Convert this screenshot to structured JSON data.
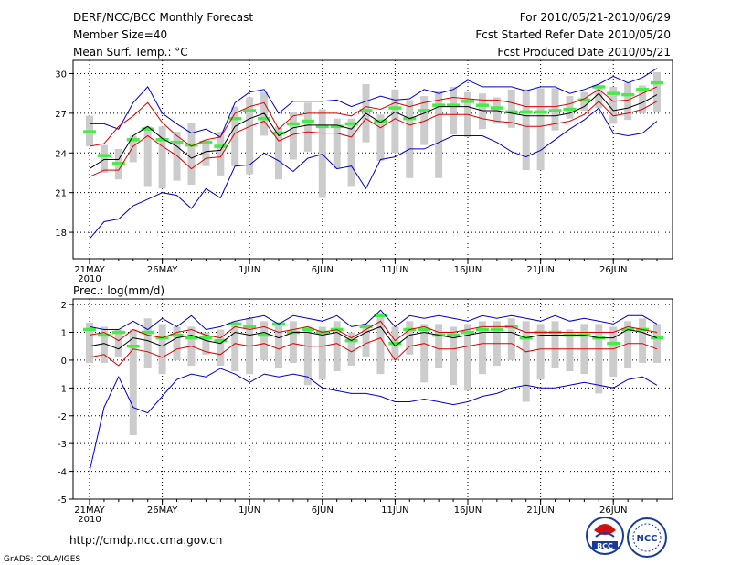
{
  "header": {
    "title": "DERF/NCC/BCC Monthly Forecast",
    "member_size": "Member Size=40",
    "variable": "Mean Surf. Temp.: °C",
    "period": "For 2010/05/21-2010/06/29",
    "refer_date": "Fcst Started Refer Date 2010/05/20",
    "produced_date": "Fcst Produced Date 2010/05/21"
  },
  "footer": {
    "url": "http://cmdp.ncc.cma.gov.cn",
    "credit": "GrADS: COLA/IGES",
    "logo_left_text": "BCC",
    "logo_right_text": "NCC"
  },
  "colors": {
    "box": "#cccccc",
    "median": "#44ee44",
    "mean": "#000000",
    "spread": "#dd0000",
    "extreme": "#0000cc",
    "grid": "#000000"
  },
  "chart_data": [
    {
      "type": "line",
      "panel": "temperature",
      "title": "Mean Surf. Temp.: °C",
      "ylim": [
        16,
        31
      ],
      "yticks": [
        18,
        21,
        24,
        27,
        30
      ],
      "x_tick_labels": [
        {
          "day": 0,
          "label": "21MAY"
        },
        {
          "day": 5,
          "label": "26MAY"
        },
        {
          "day": 11,
          "label": "1JUN"
        },
        {
          "day": 16,
          "label": "6JUN"
        },
        {
          "day": 21,
          "label": "11JUN"
        },
        {
          "day": 26,
          "label": "16JUN"
        },
        {
          "day": 31,
          "label": "21JUN"
        },
        {
          "day": 36,
          "label": "26JUN"
        }
      ],
      "x_year_label": "2010",
      "days": 40,
      "series": [
        {
          "name": "max",
          "values": [
            26.2,
            26.2,
            25.8,
            27.8,
            29.0,
            27.0,
            26.2,
            25.5,
            25.8,
            25.2,
            27.8,
            28.6,
            28.8,
            27.0,
            27.9,
            27.9,
            27.9,
            28.0,
            27.5,
            27.9,
            28.3,
            28.0,
            28.1,
            28.8,
            28.5,
            28.8,
            29.5,
            29.0,
            29.0,
            29.0,
            28.7,
            29.0,
            29.0,
            28.5,
            28.8,
            29.2,
            29.8,
            29.3,
            29.7,
            30.4
          ]
        },
        {
          "name": "upper",
          "values": [
            24.5,
            24.7,
            26.0,
            26.8,
            27.8,
            26.3,
            25.3,
            24.5,
            25.0,
            25.2,
            27.0,
            27.5,
            27.8,
            25.8,
            26.8,
            27.0,
            27.0,
            27.0,
            26.8,
            27.5,
            27.3,
            27.8,
            27.5,
            27.8,
            28.0,
            28.2,
            28.1,
            28.0,
            28.0,
            27.8,
            27.5,
            27.5,
            27.5,
            27.7,
            28.1,
            28.8,
            27.9,
            28.0,
            28.5,
            29.0
          ]
        },
        {
          "name": "mean",
          "values": [
            22.8,
            23.5,
            23.5,
            25.3,
            26.0,
            25.1,
            24.5,
            23.6,
            24.1,
            24.2,
            26.0,
            26.6,
            27.0,
            25.3,
            25.9,
            26.1,
            26.1,
            26.1,
            25.8,
            27.0,
            26.3,
            27.1,
            26.6,
            27.0,
            27.5,
            27.5,
            27.5,
            27.2,
            27.2,
            27.0,
            26.8,
            26.8,
            26.8,
            27.0,
            27.5,
            28.5,
            27.2,
            27.4,
            27.8,
            28.4
          ]
        },
        {
          "name": "lower",
          "values": [
            22.2,
            22.7,
            22.7,
            24.5,
            25.3,
            24.5,
            23.8,
            22.8,
            23.6,
            23.7,
            25.5,
            26.0,
            26.4,
            24.9,
            25.4,
            25.6,
            25.5,
            25.5,
            25.2,
            26.6,
            25.9,
            26.6,
            26.1,
            26.4,
            26.9,
            26.9,
            26.9,
            26.6,
            26.4,
            26.3,
            26.0,
            26.0,
            26.2,
            26.4,
            26.9,
            27.9,
            26.8,
            27.0,
            27.3,
            27.9
          ]
        },
        {
          "name": "min",
          "values": [
            17.5,
            18.8,
            19.0,
            20.0,
            20.5,
            21.0,
            20.8,
            19.8,
            21.3,
            20.6,
            23.0,
            23.1,
            24.0,
            23.4,
            22.6,
            23.6,
            23.9,
            22.8,
            23.0,
            21.3,
            23.5,
            23.7,
            24.3,
            24.3,
            24.8,
            25.3,
            25.3,
            25.3,
            24.8,
            24.1,
            23.7,
            24.2,
            25.0,
            25.8,
            26.5,
            27.4,
            25.5,
            25.3,
            25.5,
            26.4
          ]
        }
      ],
      "boxes": {
        "top": [
          26.8,
          24.6,
          24.3,
          25.3,
          26.0,
          26.0,
          25.6,
          26.3,
          25.0,
          25.6,
          27.5,
          28.2,
          28.6,
          26.0,
          27.1,
          27.8,
          27.3,
          26.6,
          26.6,
          29.2,
          26.9,
          28.8,
          28.0,
          28.3,
          28.7,
          29.0,
          28.6,
          28.5,
          28.2,
          28.8,
          28.8,
          28.9,
          28.9,
          28.3,
          28.6,
          29.1,
          29.0,
          29.3,
          29.1,
          30.1
        ],
        "bottom": [
          24.5,
          22.5,
          22.0,
          23.3,
          21.5,
          21.3,
          21.9,
          21.6,
          23.0,
          22.3,
          23.0,
          22.4,
          25.3,
          22.0,
          23.5,
          24.1,
          20.6,
          22.8,
          21.5,
          24.8,
          23.4,
          24.0,
          22.1,
          24.6,
          22.1,
          25.4,
          25.2,
          25.8,
          26.2,
          25.9,
          22.7,
          22.7,
          25.7,
          26.6,
          27.2,
          27.4,
          26.2,
          26.5,
          27.0,
          27.1
        ],
        "median": [
          25.6,
          23.8,
          23.2,
          25.0,
          25.8,
          25.0,
          24.8,
          24.6,
          24.8,
          24.5,
          26.6,
          27.2,
          26.6,
          25.5,
          26.2,
          26.4,
          26.0,
          26.0,
          26.2,
          27.2,
          26.4,
          27.4,
          26.6,
          27.2,
          27.6,
          27.6,
          27.9,
          27.6,
          27.4,
          27.1,
          27.1,
          27.1,
          27.2,
          27.3,
          28.0,
          29.0,
          28.5,
          28.4,
          28.8,
          29.3
        ]
      }
    },
    {
      "type": "line",
      "panel": "precipitation",
      "title": "Prec.: log(mm/d)",
      "ylim": [
        -5,
        2.2
      ],
      "yticks": [
        -5,
        -4,
        -3,
        -2,
        -1,
        0,
        1,
        2
      ],
      "x_tick_labels": [
        {
          "day": 0,
          "label": "21MAY"
        },
        {
          "day": 5,
          "label": "26MAY"
        },
        {
          "day": 11,
          "label": "1JUN"
        },
        {
          "day": 16,
          "label": "6JUN"
        },
        {
          "day": 21,
          "label": "11JUN"
        },
        {
          "day": 26,
          "label": "16JUN"
        },
        {
          "day": 31,
          "label": "21JUN"
        },
        {
          "day": 36,
          "label": "26JUN"
        }
      ],
      "x_year_label": "2010",
      "days": 40,
      "series": [
        {
          "name": "max",
          "values": [
            1.2,
            1.1,
            1.1,
            1.4,
            1.1,
            1.5,
            1.2,
            1.6,
            1.1,
            1.2,
            1.4,
            1.5,
            1.6,
            1.3,
            1.6,
            1.5,
            1.4,
            1.6,
            1.2,
            1.3,
            1.8,
            1.2,
            1.6,
            1.5,
            1.6,
            1.5,
            1.4,
            1.6,
            1.5,
            1.6,
            1.5,
            1.4,
            1.6,
            1.4,
            1.5,
            1.4,
            1.3,
            1.6,
            1.6,
            1.3
          ]
        },
        {
          "name": "upper",
          "values": [
            0.9,
            1.0,
            0.7,
            1.1,
            0.9,
            0.8,
            1.0,
            1.1,
            0.9,
            0.8,
            1.2,
            1.1,
            1.2,
            1.0,
            1.1,
            1.2,
            1.0,
            1.1,
            0.8,
            1.1,
            1.4,
            0.7,
            1.1,
            1.2,
            1.0,
            1.0,
            1.1,
            1.2,
            1.2,
            1.2,
            1.0,
            1.0,
            1.0,
            1.0,
            1.0,
            1.0,
            1.0,
            1.2,
            1.1,
            1.0
          ]
        },
        {
          "name": "mean",
          "values": [
            0.5,
            0.6,
            0.4,
            0.8,
            0.7,
            0.5,
            0.8,
            0.9,
            0.7,
            0.6,
            1.0,
            0.9,
            1.0,
            0.8,
            1.0,
            1.0,
            0.9,
            1.0,
            0.7,
            1.0,
            1.2,
            0.5,
            0.9,
            1.0,
            0.9,
            0.8,
            0.9,
            1.0,
            1.0,
            1.0,
            0.8,
            0.9,
            0.9,
            0.9,
            0.9,
            0.8,
            0.8,
            1.1,
            1.0,
            0.8
          ]
        },
        {
          "name": "lower",
          "values": [
            0.1,
            0.2,
            -0.2,
            0.4,
            0.3,
            0.1,
            0.4,
            0.5,
            0.3,
            0.2,
            0.6,
            0.5,
            0.6,
            0.4,
            0.6,
            0.5,
            0.5,
            0.6,
            0.3,
            0.6,
            0.8,
            0.0,
            0.5,
            0.6,
            0.4,
            0.4,
            0.5,
            0.6,
            0.6,
            0.6,
            0.3,
            0.4,
            0.4,
            0.4,
            0.4,
            0.4,
            0.4,
            0.6,
            0.6,
            0.4
          ]
        },
        {
          "name": "min",
          "values": [
            -4.0,
            -1.7,
            -0.6,
            -1.7,
            -1.9,
            -1.3,
            -0.7,
            -0.5,
            -0.6,
            -0.3,
            -0.5,
            -0.8,
            -0.5,
            -0.6,
            -0.5,
            -0.6,
            -1.0,
            -1.1,
            -1.2,
            -1.2,
            -1.3,
            -1.5,
            -1.5,
            -1.4,
            -1.5,
            -1.6,
            -1.5,
            -1.3,
            -1.2,
            -1.0,
            -0.9,
            -1.0,
            -1.0,
            -0.9,
            -0.8,
            -0.9,
            -1.0,
            -0.7,
            -0.6,
            -0.9
          ]
        },
        {
          "name": "min_detail",
          "values": [
            -4.0,
            -1.7,
            -0.6,
            -1.7,
            -1.9,
            -1.3,
            -0.7,
            -0.5,
            -0.6,
            -0.3,
            -0.5,
            -0.8,
            -0.5,
            -0.6,
            -0.5,
            -0.6,
            -1.0,
            -1.1,
            -1.2,
            -1.2,
            -1.5,
            -1.2,
            -1.5,
            -1.4,
            -1.4,
            -1.7,
            -1.5,
            -1.3,
            -1.2,
            -0.8,
            -0.9,
            -1.0,
            -1.0,
            -0.9,
            -0.8,
            -0.9,
            -1.0,
            -0.7,
            -0.5,
            -0.9
          ]
        }
      ],
      "boxes": {
        "top": [
          1.35,
          1.2,
          1.1,
          1.1,
          1.5,
          1.3,
          1.2,
          1.2,
          1.0,
          1.1,
          1.4,
          1.5,
          1.4,
          1.3,
          1.4,
          1.2,
          1.2,
          1.4,
          1.0,
          1.3,
          1.7,
          1.2,
          1.4,
          1.3,
          1.3,
          1.2,
          1.3,
          1.4,
          1.4,
          1.5,
          1.4,
          1.3,
          1.4,
          1.1,
          1.3,
          1.3,
          1.2,
          1.4,
          1.5,
          1.3
        ],
        "bottom": [
          -0.1,
          -0.1,
          0.1,
          -2.7,
          -0.3,
          -0.5,
          0.0,
          -0.2,
          0.2,
          -0.2,
          -0.4,
          -0.5,
          0.0,
          -0.3,
          -0.1,
          -0.9,
          -0.7,
          -0.4,
          -0.2,
          0.1,
          -0.5,
          0.0,
          0.2,
          -0.8,
          -0.3,
          -0.9,
          -1.1,
          -0.5,
          -0.2,
          0.0,
          -1.5,
          -0.7,
          -0.3,
          -0.4,
          -0.5,
          -1.2,
          -0.6,
          -0.3,
          -0.1,
          -0.1
        ],
        "median": [
          1.1,
          0.9,
          1.0,
          0.5,
          1.0,
          0.8,
          0.9,
          0.8,
          0.8,
          0.7,
          1.3,
          1.2,
          0.9,
          1.3,
          1.0,
          1.1,
          1.0,
          1.1,
          0.7,
          1.2,
          1.6,
          0.6,
          1.1,
          1.1,
          0.9,
          0.9,
          1.0,
          1.1,
          1.1,
          1.2,
          0.8,
          1.0,
          1.0,
          0.9,
          0.9,
          0.8,
          0.6,
          1.1,
          1.1,
          0.8
        ]
      }
    }
  ]
}
